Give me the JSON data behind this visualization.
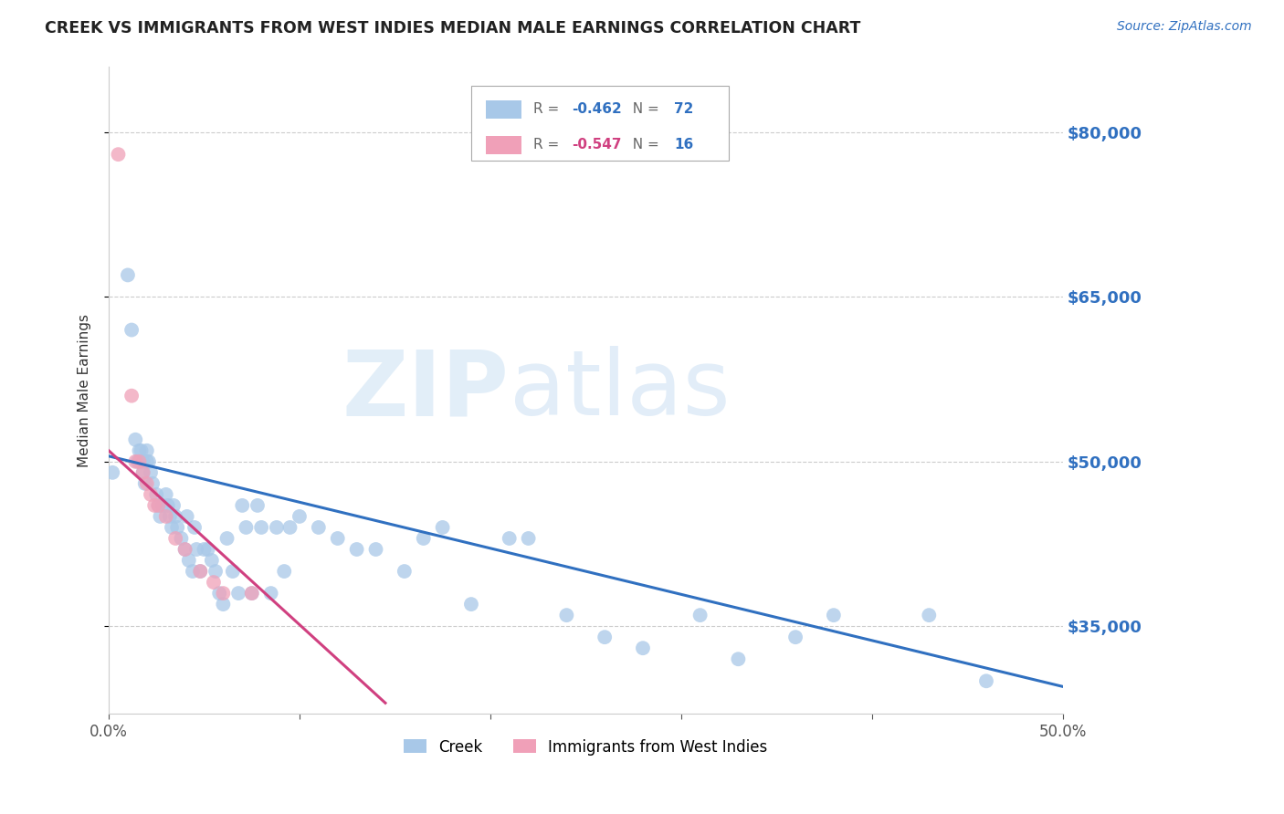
{
  "title": "CREEK VS IMMIGRANTS FROM WEST INDIES MEDIAN MALE EARNINGS CORRELATION CHART",
  "source": "Source: ZipAtlas.com",
  "ylabel": "Median Male Earnings",
  "xlim": [
    0.0,
    0.5
  ],
  "ylim": [
    27000,
    86000
  ],
  "xtick_positions": [
    0.0,
    0.1,
    0.2,
    0.3,
    0.4,
    0.5
  ],
  "xtick_labels": [
    "0.0%",
    "",
    "",
    "",
    "",
    "50.0%"
  ],
  "ytick_values": [
    35000,
    50000,
    65000,
    80000
  ],
  "ytick_labels": [
    "$35,000",
    "$50,000",
    "$65,000",
    "$80,000"
  ],
  "creek_R": -0.462,
  "creek_N": 72,
  "wi_R": -0.547,
  "wi_N": 16,
  "creek_color": "#a8c8e8",
  "wi_color": "#f0a0b8",
  "creek_line_color": "#3070c0",
  "wi_line_color": "#d04080",
  "watermark_zip": "ZIP",
  "watermark_atlas": "atlas",
  "creek_x": [
    0.002,
    0.01,
    0.012,
    0.014,
    0.015,
    0.016,
    0.017,
    0.018,
    0.018,
    0.019,
    0.02,
    0.02,
    0.021,
    0.022,
    0.023,
    0.025,
    0.026,
    0.027,
    0.028,
    0.03,
    0.031,
    0.032,
    0.033,
    0.034,
    0.035,
    0.036,
    0.038,
    0.04,
    0.041,
    0.042,
    0.044,
    0.045,
    0.046,
    0.048,
    0.05,
    0.052,
    0.054,
    0.056,
    0.058,
    0.06,
    0.062,
    0.065,
    0.068,
    0.07,
    0.072,
    0.075,
    0.078,
    0.08,
    0.085,
    0.088,
    0.092,
    0.095,
    0.1,
    0.11,
    0.12,
    0.13,
    0.14,
    0.155,
    0.165,
    0.175,
    0.19,
    0.21,
    0.22,
    0.24,
    0.26,
    0.28,
    0.31,
    0.33,
    0.36,
    0.38,
    0.43,
    0.46
  ],
  "creek_y": [
    49000,
    67000,
    62000,
    52000,
    50000,
    51000,
    51000,
    50000,
    49000,
    48000,
    51000,
    50000,
    50000,
    49000,
    48000,
    47000,
    46000,
    45000,
    46000,
    47000,
    46000,
    45000,
    44000,
    46000,
    45000,
    44000,
    43000,
    42000,
    45000,
    41000,
    40000,
    44000,
    42000,
    40000,
    42000,
    42000,
    41000,
    40000,
    38000,
    37000,
    43000,
    40000,
    38000,
    46000,
    44000,
    38000,
    46000,
    44000,
    38000,
    44000,
    40000,
    44000,
    45000,
    44000,
    43000,
    42000,
    42000,
    40000,
    43000,
    44000,
    37000,
    43000,
    43000,
    36000,
    34000,
    33000,
    36000,
    32000,
    34000,
    36000,
    36000,
    30000
  ],
  "wi_x": [
    0.005,
    0.012,
    0.014,
    0.016,
    0.018,
    0.02,
    0.022,
    0.024,
    0.026,
    0.03,
    0.035,
    0.04,
    0.048,
    0.055,
    0.06,
    0.075
  ],
  "wi_y": [
    78000,
    56000,
    50000,
    50000,
    49000,
    48000,
    47000,
    46000,
    46000,
    45000,
    43000,
    42000,
    40000,
    39000,
    38000,
    38000
  ],
  "creek_line_x": [
    0.0,
    0.5
  ],
  "creek_line_y": [
    50500,
    29500
  ],
  "wi_line_x": [
    0.0,
    0.145
  ],
  "wi_line_y": [
    51000,
    28000
  ]
}
